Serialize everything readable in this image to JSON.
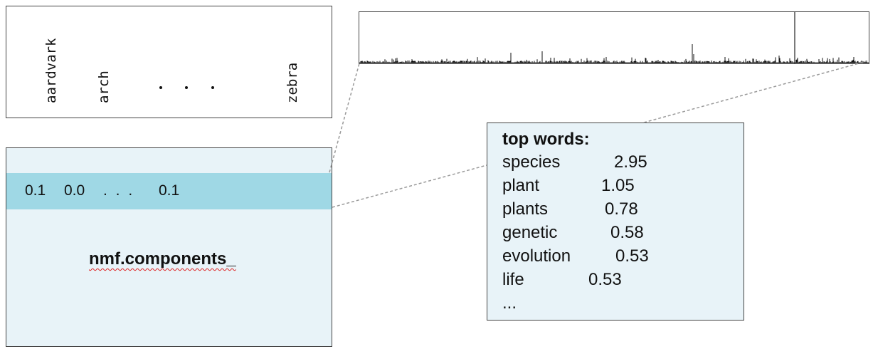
{
  "vocabulary": {
    "words": [
      "aardvark",
      "arch",
      "zebra"
    ]
  },
  "components": {
    "row_values": [
      "0.1",
      "0.0",
      "0.1"
    ],
    "row_ellipsis": ". . .",
    "label": "nmf.components_"
  },
  "top_words": {
    "title": "top words:",
    "items": [
      {
        "word": "species",
        "value": "2.95"
      },
      {
        "word": "plant",
        "value": "1.05"
      },
      {
        "word": "plants",
        "value": "0.78"
      },
      {
        "word": "genetic",
        "value": "0.58"
      },
      {
        "word": "evolution",
        "value": "0.53"
      },
      {
        "word": "life",
        "value": "0.53"
      }
    ],
    "ellipsis": "..."
  },
  "colors": {
    "highlight_row": "#9fd8e5",
    "panel_background": "#e8f3f8",
    "connector": "#999999"
  }
}
